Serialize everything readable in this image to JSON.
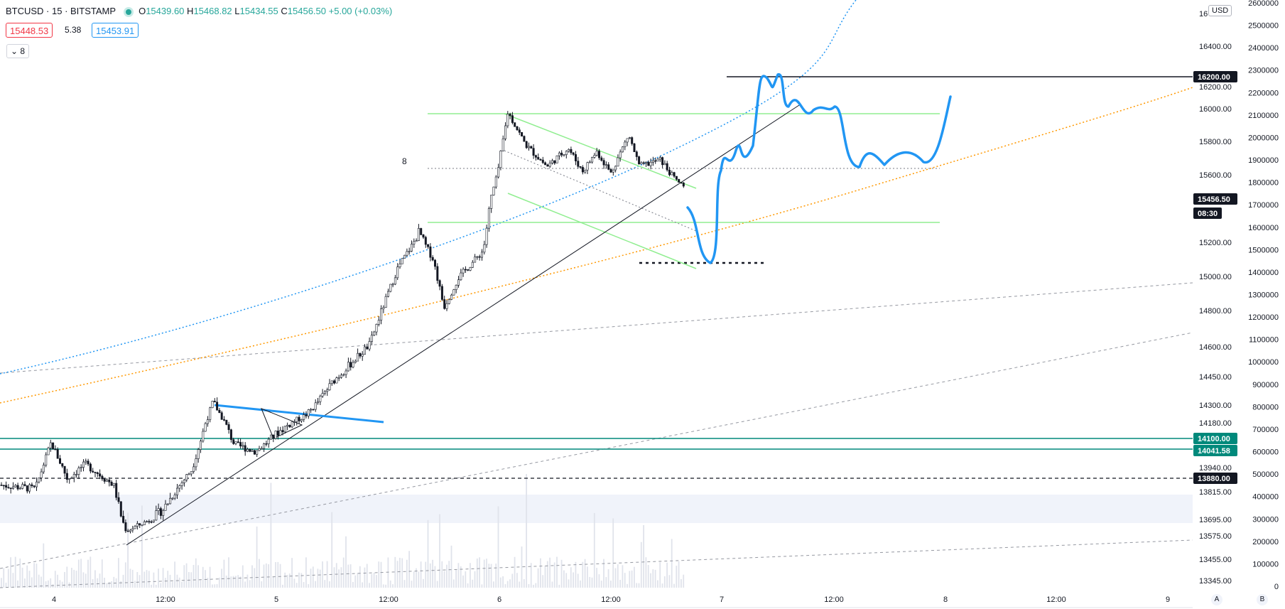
{
  "header": {
    "symbol": "BTCUSD · 15 · BITSTAMP",
    "open_label": "O",
    "open": "15439.60",
    "high_label": "H",
    "high": "15468.82",
    "low_label": "L",
    "low": "15434.55",
    "close_label": "C",
    "close": "15456.50",
    "change": "+5.00 (+0.03%)"
  },
  "quote": {
    "bid": "15448.53",
    "spread": "5.38",
    "ask": "15453.91"
  },
  "indicator_toggle": "8",
  "currency_badge": "USD",
  "annotation_label": "8",
  "axis_buttons": {
    "auto": "A",
    "log": "B"
  },
  "chart_data": {
    "type": "candlestick",
    "symbol": "BTCUSD",
    "timeframe": "15",
    "exchange": "BITSTAMP",
    "price_ticks": [
      "16400.00",
      "16200.00",
      "16000.00",
      "15800.00",
      "15600.00",
      "15400.00",
      "15200.00",
      "15000.00",
      "14800.00",
      "14600.00",
      "14450.00",
      "14300.00",
      "14180.00",
      "14100.00",
      "13940.00",
      "13815.00",
      "13695.00",
      "13575.00",
      "13455.00",
      "13345.00"
    ],
    "volume_ticks": [
      "2600000",
      "2500000",
      "2400000",
      "2300000",
      "2200000",
      "2100000",
      "2000000",
      "1900000",
      "1800000",
      "1700000",
      "1600000",
      "1500000",
      "1400000",
      "1300000",
      "1200000",
      "1100000",
      "1000000",
      "900000",
      "800000",
      "700000",
      "600000",
      "500000",
      "400000",
      "300000",
      "200000",
      "100000",
      "0"
    ],
    "time_ticks": [
      "4",
      "12:00",
      "5",
      "12:00",
      "6",
      "12:00",
      "7",
      "12:00",
      "8",
      "12:00",
      "9"
    ],
    "price_labels": [
      {
        "text": "16200.00",
        "style": "black"
      },
      {
        "text": "15456.50",
        "style": "black"
      },
      {
        "text": "08:30",
        "style": "black"
      },
      {
        "text": "14100.00",
        "style": "teal"
      },
      {
        "text": "14041.58",
        "style": "teal"
      },
      {
        "text": "13880.00",
        "style": "black"
      }
    ],
    "top_tick_partial": "16",
    "colors": {
      "up": "#ffffff",
      "down": "#131722",
      "wick": "#131722",
      "accent_blue": "#2196f3",
      "green": "#90ee90",
      "teal": "#00897b",
      "orange": "#ff9800",
      "volume": "#e0e3eb"
    }
  }
}
